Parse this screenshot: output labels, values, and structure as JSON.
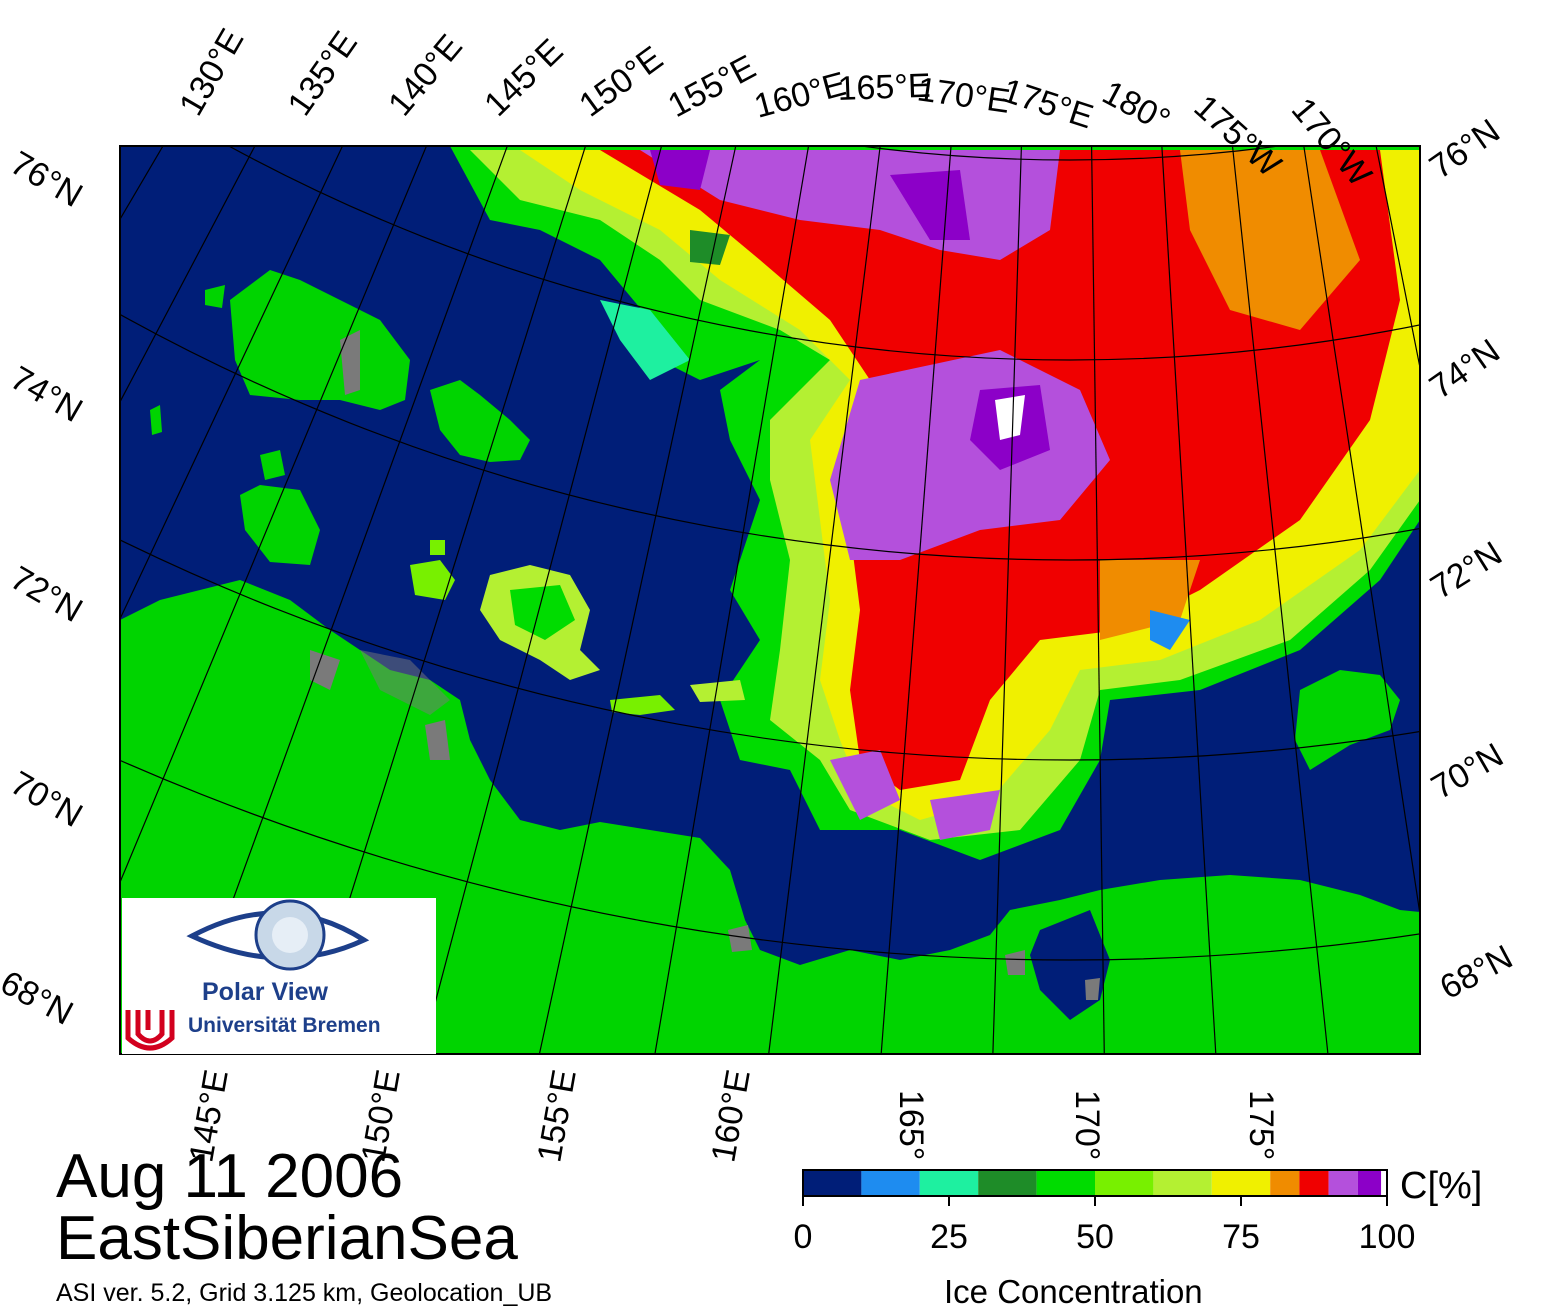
{
  "map": {
    "date": "Aug 11 2006",
    "region": "EastSiberianSea",
    "meta_line": "ASI ver. 5.2,  Grid 3.125 km, Geolocation_UB",
    "top_lon_labels": [
      "130°E",
      "135°E",
      "140°E",
      "145°E",
      "150°E",
      "155°E",
      "160°E",
      "165°E",
      "170°E",
      "175°E",
      "180°",
      "175°W",
      "170°W"
    ],
    "left_lat_labels": [
      "76°N",
      "74°N",
      "72°N",
      "70°N",
      "68°N"
    ],
    "right_lat_labels": [
      "76°N",
      "74°N",
      "72°N",
      "70°N",
      "68°N"
    ],
    "bottom_lon_labels": [
      "145°E",
      "150°E",
      "155°E",
      "160°E",
      "165°",
      "170°",
      "175°"
    ],
    "colors": {
      "water": "#001e78",
      "land": "#00d400",
      "coast_gray": "#7a7a7a"
    }
  },
  "logo": {
    "title": "Polar View",
    "university": "Universität Bremen"
  },
  "colorbar": {
    "unit": "C[%]",
    "title": "Ice Concentration",
    "ticks": [
      "0",
      "25",
      "50",
      "75",
      "100"
    ],
    "tick_values": [
      0,
      25,
      50,
      75,
      100
    ],
    "segments": [
      {
        "from": 0,
        "to": 10,
        "color": "#001e78"
      },
      {
        "from": 10,
        "to": 20,
        "color": "#1e8cf0"
      },
      {
        "from": 20,
        "to": 30,
        "color": "#1ef0a0"
      },
      {
        "from": 30,
        "to": 40,
        "color": "#1e8c28"
      },
      {
        "from": 40,
        "to": 50,
        "color": "#00dc00"
      },
      {
        "from": 50,
        "to": 60,
        "color": "#78f000"
      },
      {
        "from": 60,
        "to": 70,
        "color": "#b4f032"
      },
      {
        "from": 70,
        "to": 80,
        "color": "#f0f000"
      },
      {
        "from": 80,
        "to": 85,
        "color": "#f08c00"
      },
      {
        "from": 85,
        "to": 90,
        "color": "#f00000"
      },
      {
        "from": 90,
        "to": 95,
        "color": "#b450dc"
      },
      {
        "from": 95,
        "to": 99,
        "color": "#8c00c8"
      },
      {
        "from": 99,
        "to": 100,
        "color": "#ffffff"
      }
    ]
  }
}
